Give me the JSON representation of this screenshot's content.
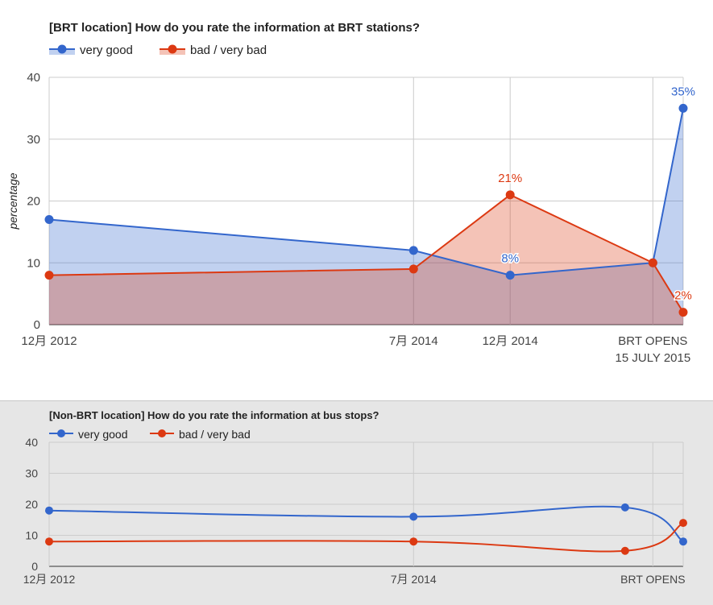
{
  "chart_data": [
    {
      "type": "area",
      "title": "[BRT location] How do you rate the information at BRT stations?",
      "ylabel": "percentage",
      "xlabel": "",
      "ylim": [
        0,
        40
      ],
      "yticks": [
        0,
        10,
        20,
        30,
        40
      ],
      "grid": true,
      "legend": "top-left",
      "categories": [
        "12月 2012",
        "7月 2014",
        "12月 2014",
        "BRT OPENS\n15 JULY 2015",
        ""
      ],
      "x_dates": [
        "2012-12",
        "2014-07",
        "2014-12",
        "2015-07-15",
        "2015-09"
      ],
      "series": [
        {
          "name": "very good",
          "color": "#3366cc",
          "values": [
            17,
            12,
            8,
            10,
            35
          ],
          "labels": [
            "",
            "",
            "8%",
            "",
            "35%"
          ]
        },
        {
          "name": "bad / very bad",
          "color": "#dc3912",
          "values": [
            8,
            9,
            21,
            10,
            2
          ],
          "labels": [
            "",
            "",
            "21%",
            "",
            "2%"
          ]
        }
      ]
    },
    {
      "type": "line",
      "title": "[Non-BRT location] How do you rate the information at bus stops?",
      "ylabel": "",
      "xlabel": "",
      "ylim": [
        0,
        40
      ],
      "yticks": [
        0,
        10,
        20,
        30,
        40
      ],
      "grid": true,
      "legend": "top-left",
      "smooth": true,
      "categories": [
        "12月 2012",
        "7月 2014",
        "",
        "BRT OPENS",
        ""
      ],
      "x_dates": [
        "2012-12",
        "2014-07",
        "2015-06",
        "2015-07-15",
        "2015-09"
      ],
      "series": [
        {
          "name": "very good",
          "color": "#3366cc",
          "values": [
            18,
            16,
            19,
            null,
            8
          ]
        },
        {
          "name": "bad / very bad",
          "color": "#dc3912",
          "values": [
            8,
            8,
            5,
            null,
            14
          ]
        }
      ]
    }
  ]
}
